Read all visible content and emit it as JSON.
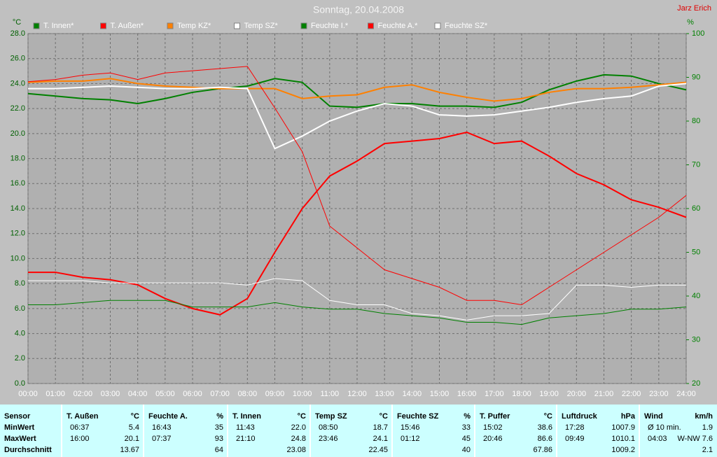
{
  "chart_data": {
    "type": "line",
    "title": "Sonntag, 20.04.2008",
    "author": "Jarz Erich",
    "y_label": "°C",
    "y2_label": "%",
    "grid": true,
    "x": [
      0,
      1,
      2,
      3,
      4,
      5,
      6,
      7,
      8,
      9,
      10,
      11,
      12,
      13,
      14,
      15,
      16,
      17,
      18,
      19,
      20,
      21,
      22,
      23,
      24
    ],
    "xlim": [
      0,
      24
    ],
    "xticks": [
      {
        "value": 0,
        "label": "00:00"
      },
      {
        "value": 1,
        "label": "01:00"
      },
      {
        "value": 2,
        "label": "02:00"
      },
      {
        "value": 3,
        "label": "03:00"
      },
      {
        "value": 4,
        "label": "04:00"
      },
      {
        "value": 5,
        "label": "05:00"
      },
      {
        "value": 6,
        "label": "06:00"
      },
      {
        "value": 7,
        "label": "07:00"
      },
      {
        "value": 8,
        "label": "08:00"
      },
      {
        "value": 9,
        "label": "09:00"
      },
      {
        "value": 10,
        "label": "10:00"
      },
      {
        "value": 11,
        "label": "11:00"
      },
      {
        "value": 12,
        "label": "12:00"
      },
      {
        "value": 13,
        "label": "13:00"
      },
      {
        "value": 14,
        "label": "14:00"
      },
      {
        "value": 15,
        "label": "15:00"
      },
      {
        "value": 16,
        "label": "16:00"
      },
      {
        "value": 17,
        "label": "17:00"
      },
      {
        "value": 18,
        "label": "18:00"
      },
      {
        "value": 19,
        "label": "19:00"
      },
      {
        "value": 20,
        "label": "20:00"
      },
      {
        "value": 21,
        "label": "21:00"
      },
      {
        "value": 22,
        "label": "22:00"
      },
      {
        "value": 23,
        "label": "23:00"
      },
      {
        "value": 24,
        "label": "24:00"
      }
    ],
    "ylim": [
      0,
      28
    ],
    "yticks": [
      {
        "value": 0,
        "label": "0.0"
      },
      {
        "value": 2,
        "label": "2.0"
      },
      {
        "value": 4,
        "label": "4.0"
      },
      {
        "value": 6,
        "label": "6.0"
      },
      {
        "value": 8,
        "label": "8.0"
      },
      {
        "value": 10,
        "label": "10.0"
      },
      {
        "value": 12,
        "label": "12.0"
      },
      {
        "value": 14,
        "label": "14.0"
      },
      {
        "value": 16,
        "label": "16.0"
      },
      {
        "value": 18,
        "label": "18.0"
      },
      {
        "value": 20,
        "label": "20.0"
      },
      {
        "value": 22,
        "label": "22.0"
      },
      {
        "value": 24,
        "label": "24.0"
      },
      {
        "value": 26,
        "label": "26.0"
      },
      {
        "value": 28,
        "label": "28.0"
      }
    ],
    "y2lim": [
      20,
      100
    ],
    "y2ticks": [
      20,
      30,
      40,
      50,
      60,
      70,
      80,
      90,
      100
    ],
    "series": [
      {
        "name": "T. Innen*",
        "color": "#008000",
        "values": [
          23.2,
          23.0,
          22.8,
          22.7,
          22.4,
          22.8,
          23.3,
          23.6,
          23.8,
          24.4,
          24.1,
          22.2,
          22.1,
          22.4,
          22.4,
          22.2,
          22.2,
          22.1,
          22.5,
          23.5,
          24.2,
          24.7,
          24.6,
          24.0,
          23.5
        ]
      },
      {
        "name": "T. Außen*",
        "color": "#ff0000",
        "values": [
          8.9,
          8.9,
          8.5,
          8.3,
          7.9,
          6.8,
          6.0,
          5.5,
          6.8,
          10.5,
          14.0,
          16.6,
          17.8,
          19.2,
          19.4,
          19.6,
          20.1,
          19.2,
          19.4,
          18.2,
          16.8,
          15.9,
          14.7,
          14.1,
          13.3
        ]
      },
      {
        "name": "Temp KZ*",
        "color": "#ff8000",
        "values": [
          24.1,
          24.2,
          24.2,
          24.4,
          24.0,
          23.8,
          23.7,
          23.6,
          23.6,
          23.6,
          22.8,
          23.0,
          23.1,
          23.7,
          23.9,
          23.3,
          22.9,
          22.6,
          22.8,
          23.3,
          23.6,
          23.6,
          23.7,
          23.9,
          24.1
        ]
      },
      {
        "name": "Temp SZ*",
        "color": "#ffffff",
        "values": [
          23.6,
          23.6,
          23.7,
          23.8,
          23.7,
          23.6,
          23.6,
          23.7,
          23.6,
          18.8,
          19.8,
          21.0,
          21.8,
          22.4,
          22.2,
          21.5,
          21.4,
          21.5,
          21.8,
          22.1,
          22.5,
          22.8,
          23.0,
          23.8,
          24.0
        ]
      },
      {
        "name": "Feuchte I.*",
        "color": "#008000",
        "axis": "y2",
        "values": [
          38,
          38,
          38.5,
          39,
          39,
          39,
          37.5,
          37.5,
          37.5,
          38.5,
          37.5,
          37,
          37,
          36,
          35.5,
          35,
          34,
          34,
          33.5,
          35,
          35.5,
          36,
          37,
          37,
          37.5
        ]
      },
      {
        "name": "Feuchte A.*",
        "color": "#ff0000",
        "axis": "y2",
        "values": [
          89,
          89.5,
          90.5,
          91,
          89.5,
          91,
          91.5,
          92,
          92.5,
          83,
          73,
          56,
          51,
          46,
          44,
          42,
          39,
          39,
          38,
          42,
          46,
          50,
          54,
          58,
          63
        ]
      },
      {
        "name": "Feuchte SZ*",
        "color": "#ffffff",
        "axis": "y2",
        "values": [
          43.5,
          43.5,
          43.5,
          43,
          43,
          43,
          43,
          43,
          42.5,
          44,
          43.5,
          39,
          38,
          38,
          36,
          35.5,
          34.5,
          35.5,
          35.5,
          36,
          42.5,
          42.5,
          42,
          42.5,
          42.5
        ]
      }
    ]
  },
  "table": {
    "sensor_header": "Sensor",
    "row_labels": [
      "MinWert",
      "MaxWert",
      "Durchschnitt"
    ],
    "groups": [
      {
        "name": "T. Außen",
        "unit": "°C",
        "rows": [
          [
            "06:37",
            "5.4"
          ],
          [
            "16:00",
            "20.1"
          ],
          [
            null,
            "13.67"
          ]
        ]
      },
      {
        "name": "Feuchte A.",
        "unit": "%",
        "rows": [
          [
            "16:43",
            "35"
          ],
          [
            "07:37",
            "93"
          ],
          [
            null,
            "64"
          ]
        ]
      },
      {
        "name": "T. Innen",
        "unit": "°C",
        "rows": [
          [
            "11:43",
            "22.0"
          ],
          [
            "21:10",
            "24.8"
          ],
          [
            null,
            "23.08"
          ]
        ]
      },
      {
        "name": "Temp SZ",
        "unit": "°C",
        "rows": [
          [
            "08:50",
            "18.7"
          ],
          [
            "23:46",
            "24.1"
          ],
          [
            null,
            "22.45"
          ]
        ]
      },
      {
        "name": "Feuchte SZ",
        "unit": "%",
        "rows": [
          [
            "15:46",
            "33"
          ],
          [
            "01:12",
            "45"
          ],
          [
            null,
            "40"
          ]
        ]
      },
      {
        "name": "T. Puffer",
        "unit": "°C",
        "rows": [
          [
            "15:02",
            "38.6"
          ],
          [
            "20:46",
            "86.6"
          ],
          [
            null,
            "67.86"
          ]
        ]
      },
      {
        "name": "Luftdruck",
        "unit": "hPa",
        "rows": [
          [
            "17:28",
            "1007.9"
          ],
          [
            "09:49",
            "1010.1"
          ],
          [
            null,
            "1009.2"
          ]
        ]
      },
      {
        "name": "Wind",
        "unit": "km/h",
        "rows": [
          [
            "Ø 10 min.",
            "1.9"
          ],
          [
            "04:03",
            "W-NW 7.6"
          ],
          [
            null,
            "2.1"
          ]
        ]
      }
    ]
  }
}
